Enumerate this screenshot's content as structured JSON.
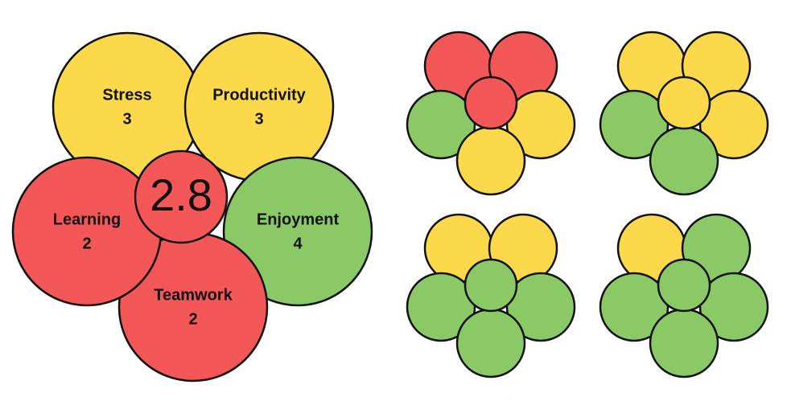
{
  "main_flower": {
    "petals": [
      {
        "label": "Stress",
        "value": 3,
        "color": "#fcd94a"
      },
      {
        "label": "Productivity",
        "value": 3,
        "color": "#fcd94a"
      },
      {
        "label": "Enjoyment",
        "value": 4,
        "color": "#8bc966"
      },
      {
        "label": "Teamwork",
        "value": 2,
        "color": "#f45757"
      },
      {
        "label": "Learning",
        "value": 2,
        "color": "#f45757"
      }
    ],
    "center": {
      "value": 2.8,
      "color": "#f45757"
    }
  },
  "small_flowers": [
    {
      "petals": [
        "#f45757",
        "#f45757",
        "#8bc966",
        "#fcd94a",
        "#fcd94a"
      ],
      "center": "#f45757"
    },
    {
      "petals": [
        "#fcd94a",
        "#fcd94a",
        "#8bc966",
        "#fcd94a",
        "#8bc966"
      ],
      "center": "#fcd94a"
    },
    {
      "petals": [
        "#fcd94a",
        "#fcd94a",
        "#8bc966",
        "#8bc966",
        "#8bc966"
      ],
      "center": "#8bc966"
    },
    {
      "petals": [
        "#fcd94a",
        "#8bc966",
        "#8bc966",
        "#8bc966",
        "#8bc966"
      ],
      "center": "#8bc966"
    }
  ]
}
